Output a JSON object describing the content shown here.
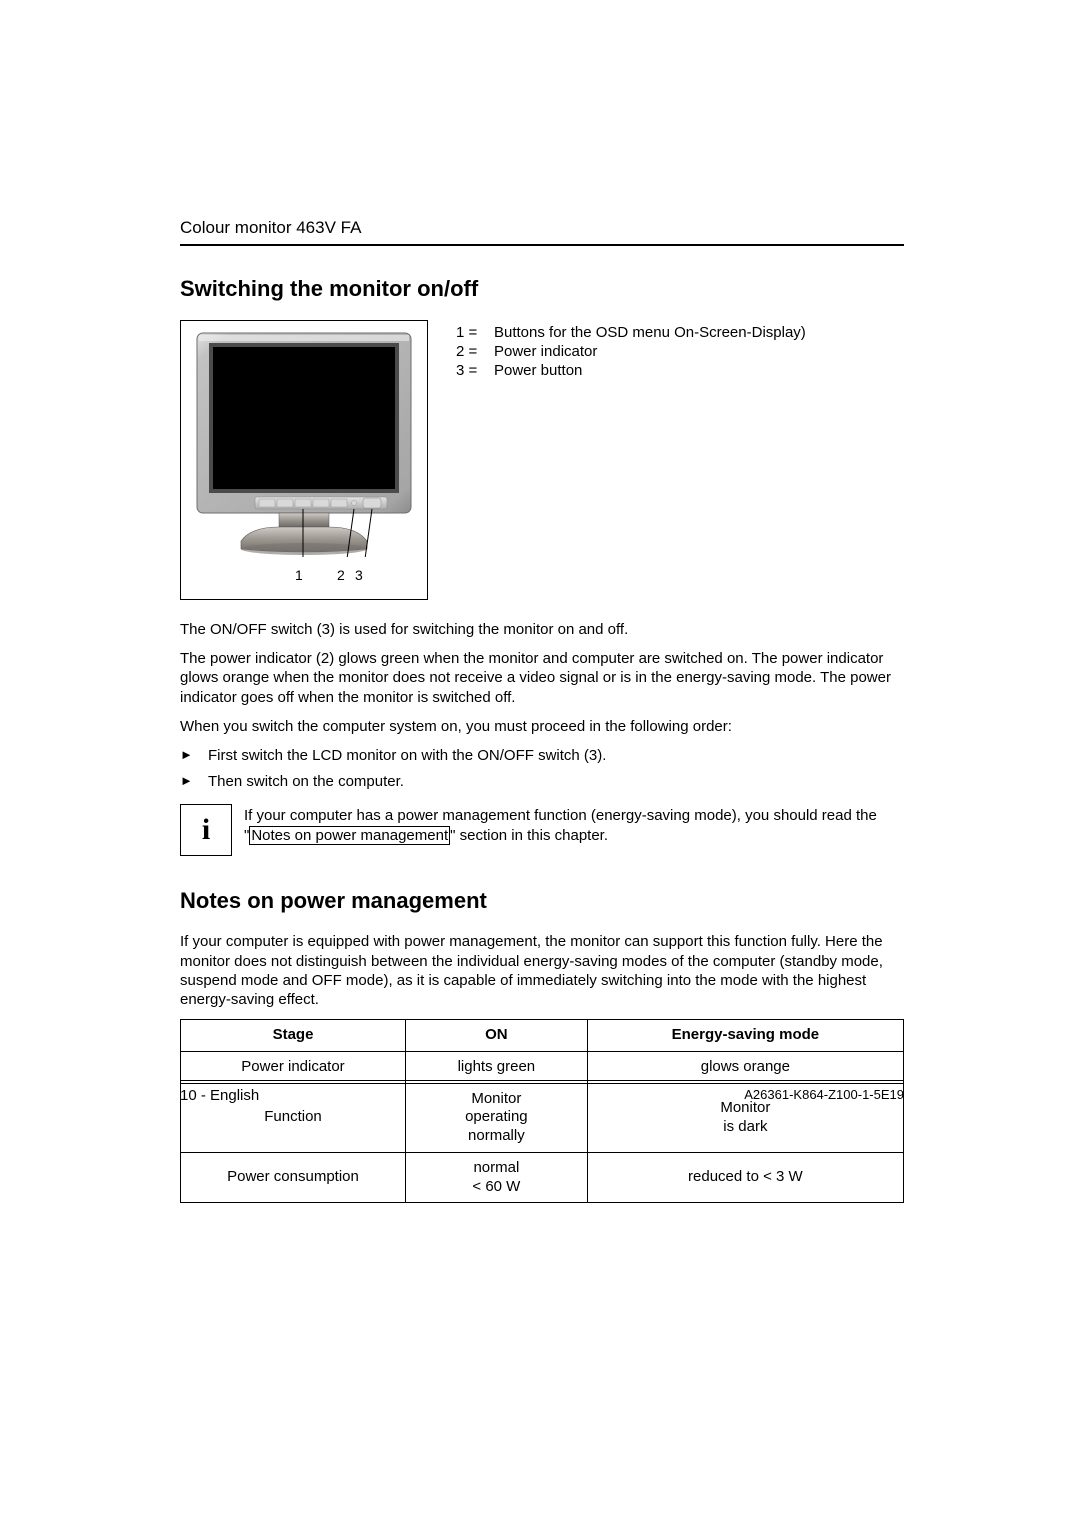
{
  "header": {
    "title": "Colour monitor 463V FA"
  },
  "section1": {
    "heading": "Switching the monitor on/off",
    "legend": [
      {
        "key": "1 =",
        "text": "Buttons for the OSD menu On-Screen-Display)"
      },
      {
        "key": "2 =",
        "text": "Power indicator"
      },
      {
        "key": "3 =",
        "text": "Power button"
      }
    ],
    "callouts": {
      "c1": "1",
      "c2": "2",
      "c3": "3"
    },
    "para1": "The ON/OFF switch (3) is used for switching the monitor on and off.",
    "para2": "The power indicator (2) glows green when the monitor and computer are switched on. The power indicator glows orange when the monitor does not receive a video signal or is in the energy-saving mode. The power indicator goes off when the monitor is switched off.",
    "para3": "When you switch the computer system on, you must proceed in the following order:",
    "bullets": [
      "First switch the LCD monitor on with the ON/OFF switch (3).",
      "Then switch on the computer."
    ],
    "info_pre": "If your computer has a power management function (energy-saving mode), you should read the \"",
    "info_link": "Notes on power management",
    "info_post": "\" section in this chapter.",
    "info_icon": "i"
  },
  "section2": {
    "heading": "Notes on power management",
    "para1": "If your computer is equipped with power management, the monitor can support this function fully. Here the monitor does not distinguish between the individual energy-saving modes of the computer (standby mode, suspend mode and OFF mode), as it is capable of immediately switching into the mode with the highest energy-saving effect.",
    "table": {
      "headers": [
        "Stage",
        "ON",
        "Energy-saving mode"
      ],
      "rows": [
        [
          "Power indicator",
          "lights green",
          "glows orange"
        ],
        [
          "Function",
          "Monitor\noperating\nnormally",
          "Monitor\nis dark"
        ],
        [
          "Power consumption",
          "normal\n< 60 W",
          "reduced to < 3 W"
        ]
      ]
    }
  },
  "footer": {
    "left": "10 - English",
    "right": "A26361-K864-Z100-1-5E19"
  },
  "bullet_glyph": "►",
  "monitor_svg": {
    "bezel_outer": "#b7b7b7",
    "bezel_inner_dark": "#8c8c8c",
    "screen": "#000000",
    "stand": "#9c9691",
    "button": "#cfcfcf"
  }
}
